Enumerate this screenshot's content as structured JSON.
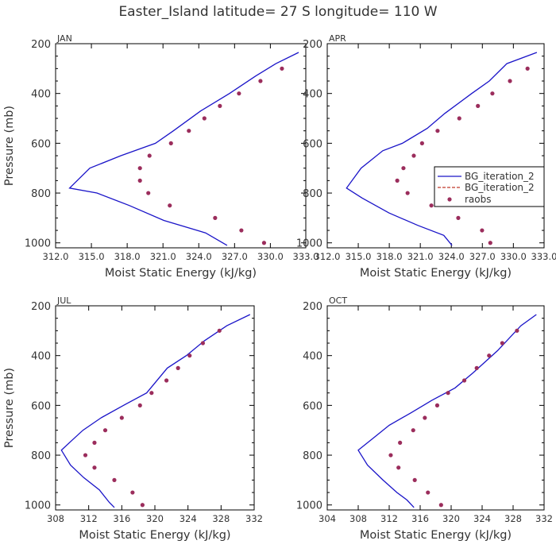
{
  "title": "Easter_Island   latitude= 27 S longitude= 110 W",
  "colors": {
    "model": "#1a14c8",
    "model_dashed": "#c0392b",
    "obs": "#9b2d5c",
    "axis": "#000000",
    "text": "#333333"
  },
  "legend": {
    "entries": [
      "BG_iteration_2",
      "BG_iteration_2",
      "raobs"
    ],
    "location": "right side of APR panel"
  },
  "chart_data": [
    {
      "type": "line+scatter",
      "panel": "JAN",
      "xlabel": "Moist Static Energy (kJ/kg)",
      "ylabel": "Pressure (mb)",
      "xlim": [
        312.03,
        333.0
      ],
      "ylim": [
        1020,
        200
      ],
      "y_inverted": true,
      "xticks": [
        312.03,
        315.03,
        318.03,
        321.03,
        324.03,
        327.03,
        330.03,
        333.0
      ],
      "xtick_labels": [
        "312.0",
        "315.0",
        "318.0",
        "321.0",
        "324.0",
        "327.0",
        "330.0",
        "333.0"
      ],
      "yticks": [
        200,
        400,
        600,
        800,
        1000
      ],
      "ytick_labels": [
        "200",
        "400",
        "600",
        "800",
        "1000"
      ],
      "series": [
        {
          "name": "BG_iteration_2",
          "style": "line",
          "points": [
            [
              326.4,
              1010
            ],
            [
              324.6,
              960
            ],
            [
              321.1,
              910
            ],
            [
              318.2,
              850
            ],
            [
              315.5,
              800
            ],
            [
              313.2,
              780
            ],
            [
              314.9,
              700
            ],
            [
              317.5,
              650
            ],
            [
              320.4,
              600
            ],
            [
              321.9,
              550
            ],
            [
              324.2,
              470
            ],
            [
              326.6,
              400
            ],
            [
              328.8,
              330
            ],
            [
              330.5,
              280
            ],
            [
              332.4,
              235
            ]
          ]
        },
        {
          "name": "raobs",
          "style": "markers",
          "points": [
            [
              329.5,
              1000
            ],
            [
              327.6,
              950
            ],
            [
              325.4,
              900
            ],
            [
              321.6,
              850
            ],
            [
              319.8,
              800
            ],
            [
              319.1,
              750
            ],
            [
              319.1,
              700
            ],
            [
              319.9,
              650
            ],
            [
              321.7,
              600
            ],
            [
              323.2,
              550
            ],
            [
              324.5,
              500
            ],
            [
              325.8,
              450
            ],
            [
              327.4,
              400
            ],
            [
              329.2,
              350
            ],
            [
              331.0,
              300
            ]
          ]
        }
      ]
    },
    {
      "type": "line+scatter",
      "panel": "APR",
      "xlabel": "Moist Static Energy (kJ/kg)",
      "ylabel": "",
      "xlim": [
        312.03,
        333.0
      ],
      "ylim": [
        1020,
        200
      ],
      "y_inverted": true,
      "xticks": [
        312.03,
        315.03,
        318.03,
        321.03,
        324.03,
        327.03,
        330.03,
        333.0
      ],
      "xtick_labels": [
        "312.0",
        "315.0",
        "318.0",
        "321.0",
        "324.0",
        "327.0",
        "330.0",
        "333.0"
      ],
      "yticks": [
        200,
        400,
        600,
        800,
        1000
      ],
      "ytick_labels": [
        "200",
        "400",
        "600",
        "800",
        "1000"
      ],
      "series": [
        {
          "name": "BG_iteration_2",
          "style": "line",
          "points": [
            [
              324.1,
              1010
            ],
            [
              323.3,
              970
            ],
            [
              320.8,
              930
            ],
            [
              318.0,
              880
            ],
            [
              315.4,
              820
            ],
            [
              313.9,
              780
            ],
            [
              315.3,
              700
            ],
            [
              317.4,
              630
            ],
            [
              319.3,
              600
            ],
            [
              321.7,
              540
            ],
            [
              323.4,
              480
            ],
            [
              326.0,
              400
            ],
            [
              327.7,
              350
            ],
            [
              329.4,
              280
            ],
            [
              332.3,
              235
            ]
          ]
        },
        {
          "name": "raobs",
          "style": "markers",
          "points": [
            [
              327.8,
              1000
            ],
            [
              327.0,
              950
            ],
            [
              324.7,
              900
            ],
            [
              322.1,
              850
            ],
            [
              319.8,
              800
            ],
            [
              318.8,
              750
            ],
            [
              319.4,
              700
            ],
            [
              320.4,
              650
            ],
            [
              321.2,
              600
            ],
            [
              322.7,
              550
            ],
            [
              324.8,
              500
            ],
            [
              326.6,
              450
            ],
            [
              328.0,
              400
            ],
            [
              329.7,
              350
            ],
            [
              331.4,
              300
            ]
          ]
        }
      ]
    },
    {
      "type": "line+scatter",
      "panel": "JUL",
      "xlabel": "Moist Static Energy (kJ/kg)",
      "ylabel": "Pressure (mb)",
      "xlim": [
        308,
        332
      ],
      "ylim": [
        1020,
        200
      ],
      "y_inverted": true,
      "xticks": [
        308,
        312,
        316,
        320,
        324,
        328,
        332
      ],
      "xtick_labels": [
        "308",
        "312",
        "316",
        "320",
        "324",
        "328",
        "332"
      ],
      "yticks": [
        200,
        400,
        600,
        800,
        1000
      ],
      "ytick_labels": [
        "200",
        "400",
        "600",
        "800",
        "1000"
      ],
      "series": [
        {
          "name": "BG_iteration_2",
          "style": "line",
          "points": [
            [
              315.1,
              1010
            ],
            [
              314.5,
              990
            ],
            [
              313.3,
              940
            ],
            [
              311.4,
              890
            ],
            [
              309.8,
              840
            ],
            [
              308.7,
              780
            ],
            [
              310.0,
              740
            ],
            [
              311.3,
              700
            ],
            [
              313.5,
              650
            ],
            [
              316.2,
              600
            ],
            [
              319.0,
              550
            ],
            [
              321.5,
              450
            ],
            [
              323.8,
              400
            ],
            [
              326.0,
              340
            ],
            [
              328.7,
              280
            ],
            [
              331.5,
              235
            ]
          ]
        },
        {
          "name": "raobs",
          "style": "markers",
          "points": [
            [
              318.5,
              1000
            ],
            [
              317.3,
              950
            ],
            [
              315.1,
              900
            ],
            [
              312.7,
              850
            ],
            [
              311.6,
              800
            ],
            [
              312.7,
              750
            ],
            [
              314.0,
              700
            ],
            [
              316.0,
              650
            ],
            [
              318.2,
              600
            ],
            [
              319.6,
              550
            ],
            [
              321.4,
              500
            ],
            [
              322.8,
              450
            ],
            [
              324.2,
              400
            ],
            [
              325.8,
              350
            ],
            [
              327.8,
              300
            ]
          ]
        }
      ]
    },
    {
      "type": "line+scatter",
      "panel": "OCT",
      "xlabel": "Moist Static Energy (kJ/kg)",
      "ylabel": "",
      "xlim": [
        304,
        332
      ],
      "ylim": [
        1020,
        200
      ],
      "y_inverted": true,
      "xticks": [
        304,
        308,
        312,
        316,
        320,
        324,
        328,
        332
      ],
      "xtick_labels": [
        "304",
        "308",
        "312",
        "316",
        "320",
        "324",
        "328",
        "332"
      ],
      "yticks": [
        200,
        400,
        600,
        800,
        1000
      ],
      "ytick_labels": [
        "200",
        "400",
        "600",
        "800",
        "1000"
      ],
      "series": [
        {
          "name": "BG_iteration_2",
          "style": "line",
          "points": [
            [
              315.2,
              1010
            ],
            [
              314.3,
              980
            ],
            [
              313.0,
              950
            ],
            [
              311.2,
              900
            ],
            [
              309.2,
              840
            ],
            [
              308.0,
              780
            ],
            [
              310.0,
              730
            ],
            [
              312.0,
              680
            ],
            [
              314.8,
              630
            ],
            [
              317.5,
              580
            ],
            [
              320.5,
              530
            ],
            [
              322.8,
              470
            ],
            [
              326.0,
              380
            ],
            [
              329.0,
              280
            ],
            [
              331.0,
              235
            ]
          ]
        },
        {
          "name": "raobs",
          "style": "markers",
          "points": [
            [
              318.7,
              1000
            ],
            [
              317.0,
              950
            ],
            [
              315.3,
              900
            ],
            [
              313.2,
              850
            ],
            [
              312.2,
              800
            ],
            [
              313.4,
              750
            ],
            [
              315.1,
              700
            ],
            [
              316.6,
              650
            ],
            [
              318.2,
              600
            ],
            [
              319.6,
              550
            ],
            [
              321.7,
              500
            ],
            [
              323.3,
              450
            ],
            [
              324.9,
              400
            ],
            [
              326.6,
              350
            ],
            [
              328.5,
              300
            ]
          ]
        }
      ]
    }
  ]
}
